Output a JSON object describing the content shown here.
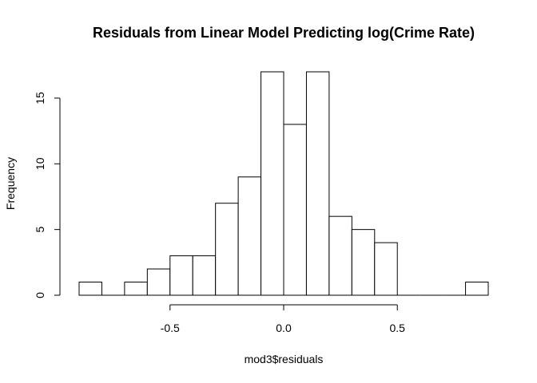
{
  "chart_data": {
    "type": "bar",
    "title": "Residuals from Linear Model Predicting log(Crime Rate)",
    "xlabel": "mod3$residuals",
    "ylabel": "Frequency",
    "bin_edges": [
      -0.9,
      -0.8,
      -0.7,
      -0.6,
      -0.5,
      -0.4,
      -0.3,
      -0.2,
      -0.1,
      0.0,
      0.1,
      0.2,
      0.3,
      0.4,
      0.5,
      0.6,
      0.7,
      0.8,
      0.9
    ],
    "values": [
      1,
      0,
      1,
      2,
      3,
      3,
      7,
      9,
      17,
      13,
      17,
      6,
      5,
      4,
      0,
      0,
      0,
      1
    ],
    "xlim": [
      -0.9,
      0.9
    ],
    "ylim": [
      0,
      17
    ],
    "x_ticks": [
      -0.5,
      0.0,
      0.5
    ],
    "x_tick_labels": [
      "-0.5",
      "0.0",
      "0.5"
    ],
    "y_ticks": [
      0,
      5,
      10,
      15
    ],
    "y_tick_labels": [
      "0",
      "5",
      "10",
      "15"
    ],
    "grid": false,
    "colors": {
      "bar_fill": "#ffffff",
      "bar_stroke": "#000000"
    }
  }
}
